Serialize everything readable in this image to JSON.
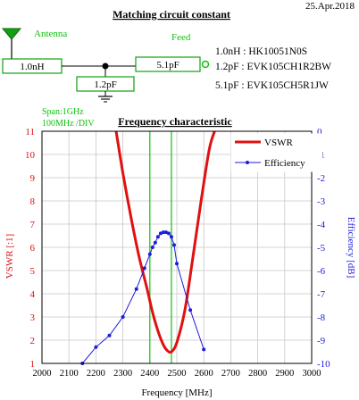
{
  "header": {
    "date": "25.Apr.2018",
    "circuit_title": "Matching circuit constant",
    "antenna_label": "Antenna",
    "feed_label": "Feed",
    "series_component": "1.0nH",
    "shunt_component": "1.2pF",
    "output_component": "5.1pF",
    "parts": [
      "1.0nH : HK10051N0S",
      "1.2pF : EVK105CH1R2BW",
      "5.1pF : EVK105CH5R1JW"
    ],
    "span_line1": "Span:1GHz",
    "span_line2": "100MHz /DIV"
  },
  "colors": {
    "vswr": "#e01010",
    "efficiency": "#1c1cdc",
    "marker": "#10c010",
    "antenna": "#14a014",
    "grid": "#c8c8c8",
    "text": "#000000"
  },
  "chart_data": {
    "type": "line",
    "title": "Frequency characteristic",
    "xlabel": "Frequency [MHz]",
    "ylabel_left": "VSWR [:1]",
    "ylabel_right": "Efficiency [dB]",
    "xlim": [
      2000,
      3000
    ],
    "ylim_left": [
      1,
      11
    ],
    "ylim_right": [
      -10,
      0
    ],
    "x_ticks": [
      "2000",
      "2100",
      "2200",
      "2300",
      "2400",
      "2500",
      "2600",
      "2700",
      "2800",
      "2900",
      "3000"
    ],
    "y_left_ticks": [
      "1",
      "2",
      "3",
      "4",
      "5",
      "6",
      "7",
      "8",
      "9",
      "10",
      "11"
    ],
    "y_right_ticks": [
      "0",
      "-1",
      "-2",
      "-3",
      "-4",
      "-5",
      "-6",
      "-7",
      "-8",
      "-9",
      "-10"
    ],
    "grid": true,
    "legend_position": "top-right",
    "markers_mhz": [
      2400,
      2480
    ],
    "series": [
      {
        "name": "VSWR",
        "axis": "left",
        "style": "line",
        "x": [
          2275,
          2300,
          2330,
          2360,
          2390,
          2410,
          2430,
          2450,
          2465,
          2480,
          2500,
          2530,
          2560,
          2590,
          2620,
          2640
        ],
        "values": [
          11.0,
          9.2,
          7.3,
          5.6,
          4.2,
          3.2,
          2.4,
          1.8,
          1.55,
          1.5,
          1.9,
          3.3,
          5.6,
          8.0,
          10.2,
          11.0
        ]
      },
      {
        "name": "Efficiency",
        "axis": "right",
        "style": "line-marker",
        "x": [
          2150,
          2200,
          2250,
          2300,
          2350,
          2380,
          2400,
          2410,
          2420,
          2430,
          2440,
          2450,
          2460,
          2470,
          2480,
          2490,
          2500,
          2550,
          2600
        ],
        "values": [
          -10.0,
          -9.3,
          -8.8,
          -8.0,
          -6.8,
          -5.9,
          -5.3,
          -5.0,
          -4.8,
          -4.55,
          -4.4,
          -4.35,
          -4.35,
          -4.4,
          -4.55,
          -4.9,
          -5.7,
          -7.7,
          -9.4
        ]
      }
    ]
  }
}
